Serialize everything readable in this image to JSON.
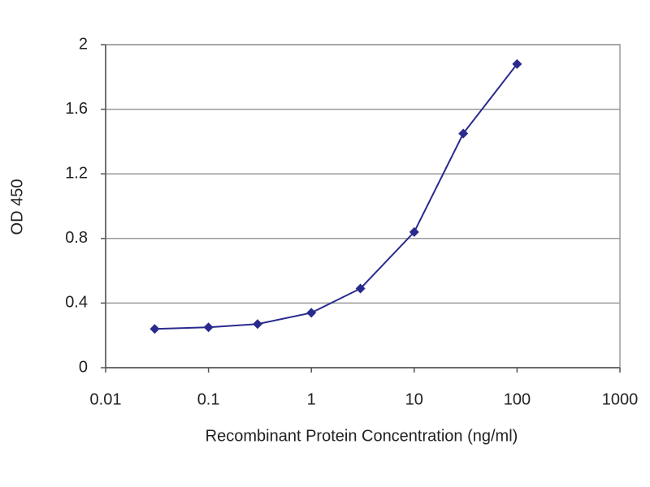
{
  "chart_data": {
    "type": "line",
    "xlabel": "Recombinant Protein Concentration (ng/ml)",
    "ylabel": "OD 450",
    "x": [
      0.03,
      0.1,
      0.3,
      1,
      3,
      10,
      30,
      100
    ],
    "values": [
      0.24,
      0.25,
      0.27,
      0.34,
      0.49,
      0.84,
      1.45,
      1.88
    ],
    "color": "#2a2a8e",
    "xscale": "log",
    "xlim": [
      0.01,
      1000
    ],
    "xticks": [
      0.01,
      0.1,
      1,
      10,
      100,
      1000
    ],
    "ylim": [
      0,
      2
    ],
    "yticks": [
      0,
      0.4,
      0.8,
      1.2,
      1.6,
      2
    ],
    "grid": true
  }
}
